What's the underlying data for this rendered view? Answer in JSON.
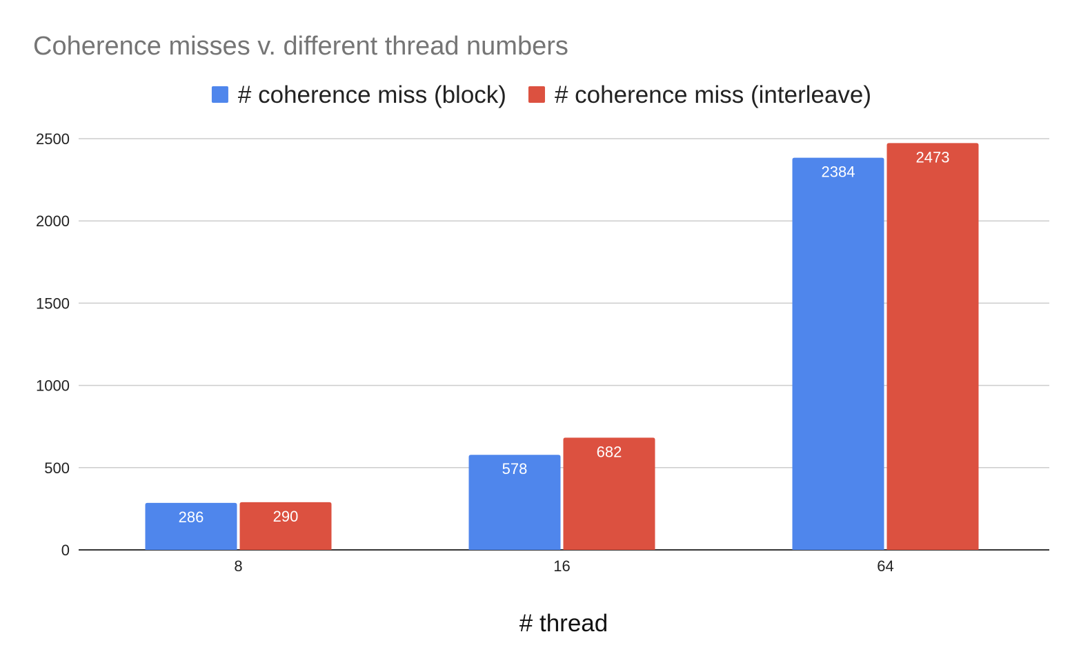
{
  "chart_data": {
    "type": "bar",
    "title": "Coherence misses v. different thread numbers",
    "xlabel": "# thread",
    "ylabel": "",
    "categories": [
      "8",
      "16",
      "64"
    ],
    "series": [
      {
        "name": "# coherence miss (block)",
        "color": "#4f86ec",
        "values": [
          286,
          578,
          2384
        ]
      },
      {
        "name": "# coherence miss (interleave)",
        "color": "#dc5140",
        "values": [
          290,
          682,
          2473
        ]
      }
    ],
    "ylim": [
      0,
      2500
    ],
    "yticks": [
      0,
      500,
      1000,
      1500,
      2000,
      2500
    ],
    "grid": true,
    "legend_position": "top",
    "data_labels": true
  }
}
